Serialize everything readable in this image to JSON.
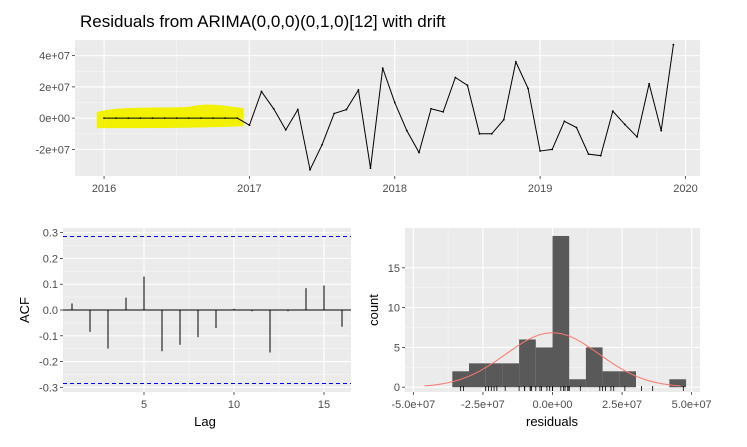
{
  "title": "Residuals from ARIMA(0,0,0)(0,1,0)[12] with drift",
  "chart_data": [
    {
      "type": "line",
      "xlim": [
        2015.8,
        2020.1
      ],
      "ylim": [
        -37000000,
        50000000
      ],
      "x_ticks": [
        2016,
        2017,
        2018,
        2019,
        2020
      ],
      "x_tick_labels": [
        "2016",
        "2017",
        "2018",
        "2019",
        "2020"
      ],
      "y_ticks": [
        -20000000,
        0,
        20000000,
        40000000
      ],
      "y_tick_labels": [
        "-2e+07",
        "0e+00",
        "2e+07",
        "4e+07"
      ],
      "annotation": {
        "type": "highlight",
        "color": "#f2f200",
        "x_range": [
          2015.95,
          2016.96
        ]
      },
      "series": [
        {
          "x": [
            2016.0,
            2016.083,
            2016.167,
            2016.25,
            2016.333,
            2016.417,
            2016.5,
            2016.583,
            2016.667,
            2016.75,
            2016.833,
            2016.917,
            2017.0,
            2017.083,
            2017.167,
            2017.25,
            2017.333,
            2017.417,
            2017.5,
            2017.583,
            2017.667,
            2017.75,
            2017.833,
            2017.917,
            2018.0,
            2018.083,
            2018.167,
            2018.25,
            2018.333,
            2018.417,
            2018.5,
            2018.583,
            2018.667,
            2018.75,
            2018.833,
            2018.917,
            2019.0,
            2019.083,
            2019.167,
            2019.25,
            2019.333,
            2019.417,
            2019.5,
            2019.583,
            2019.667,
            2019.75,
            2019.833,
            2019.917
          ],
          "y": [
            0,
            0,
            0,
            0,
            0,
            0,
            0,
            0,
            0,
            0,
            0,
            0,
            -4500000,
            17000000,
            6000000,
            -7500000,
            5500000,
            -33000000,
            -17000000,
            3000000,
            5500000,
            18000000,
            -32000000,
            32000000,
            10000000,
            -8000000,
            -22000000,
            6000000,
            4000000,
            26000000,
            21000000,
            -10000000,
            -10000000,
            -1000000,
            36000000,
            19000000,
            -21000000,
            -20000000,
            -2000000,
            -6000000,
            -23000000,
            -24000000,
            4500000,
            -4000000,
            -12000000,
            22000000,
            -8000000,
            47000000
          ]
        }
      ]
    },
    {
      "type": "bar",
      "ylabel": "ACF",
      "xlabel": "Lag",
      "xlim": [
        0.5,
        16.5
      ],
      "ylim": [
        -0.3,
        0.3
      ],
      "x_ticks": [
        5,
        10,
        15
      ],
      "x_tick_labels": [
        "5",
        "10",
        "15"
      ],
      "y_ticks": [
        -0.3,
        -0.2,
        -0.1,
        0.0,
        0.1,
        0.2,
        0.3
      ],
      "y_tick_labels": [
        "-0.3",
        "-0.2",
        "-0.1",
        "0.0",
        "0.1",
        "0.2",
        "0.3"
      ],
      "ci_bound": 0.285,
      "lags": [
        1,
        2,
        3,
        4,
        5,
        6,
        7,
        8,
        9,
        10,
        11,
        12,
        13,
        14,
        15,
        16
      ],
      "values": [
        0.025,
        -0.085,
        -0.15,
        0.048,
        0.13,
        -0.16,
        -0.135,
        -0.105,
        -0.07,
        0.005,
        -0.005,
        -0.165,
        -0.005,
        0.085,
        0.095,
        -0.065
      ]
    },
    {
      "type": "bar",
      "subtype": "histogram",
      "xlabel": "residuals",
      "ylabel": "count",
      "xlim": [
        -53000000,
        53000000
      ],
      "ylim": [
        -0.6,
        20
      ],
      "x_ticks": [
        -50000000,
        -25000000,
        0,
        25000000,
        50000000
      ],
      "x_tick_labels": [
        "-5.0e+07",
        "-2.5e+07",
        "0.0e+00",
        "2.5e+07",
        "5.0e+07"
      ],
      "y_ticks": [
        0,
        5,
        10,
        15
      ],
      "y_tick_labels": [
        "0",
        "5",
        "10",
        "15"
      ],
      "bin_width": 6000000,
      "bin_centers": [
        -33000000,
        -27000000,
        -21000000,
        -15000000,
        -9000000,
        -3000000,
        3000000,
        9000000,
        15000000,
        21000000,
        27000000,
        33000000,
        39000000,
        45000000
      ],
      "counts": [
        2,
        3,
        3,
        3,
        6,
        5,
        19,
        1,
        5,
        2,
        2,
        0,
        0,
        1
      ],
      "density_curve": {
        "color": "#f8766d",
        "mean": 0,
        "sd": 16800000,
        "n": 48
      },
      "rug_values": [
        -33000000,
        -32000000,
        -24000000,
        -23000000,
        -22000000,
        -21000000,
        -20000000,
        -17000000,
        -12000000,
        -10000000,
        -10000000,
        -8000000,
        -8000000,
        -7500000,
        -6000000,
        -4500000,
        -4000000,
        -2000000,
        -1000000,
        0,
        0,
        0,
        0,
        0,
        0,
        0,
        0,
        0,
        0,
        0,
        0,
        3000000,
        4000000,
        4500000,
        5500000,
        5500000,
        6000000,
        6000000,
        10000000,
        17000000,
        18000000,
        19000000,
        21000000,
        22000000,
        26000000,
        32000000,
        36000000,
        47000000
      ]
    }
  ]
}
